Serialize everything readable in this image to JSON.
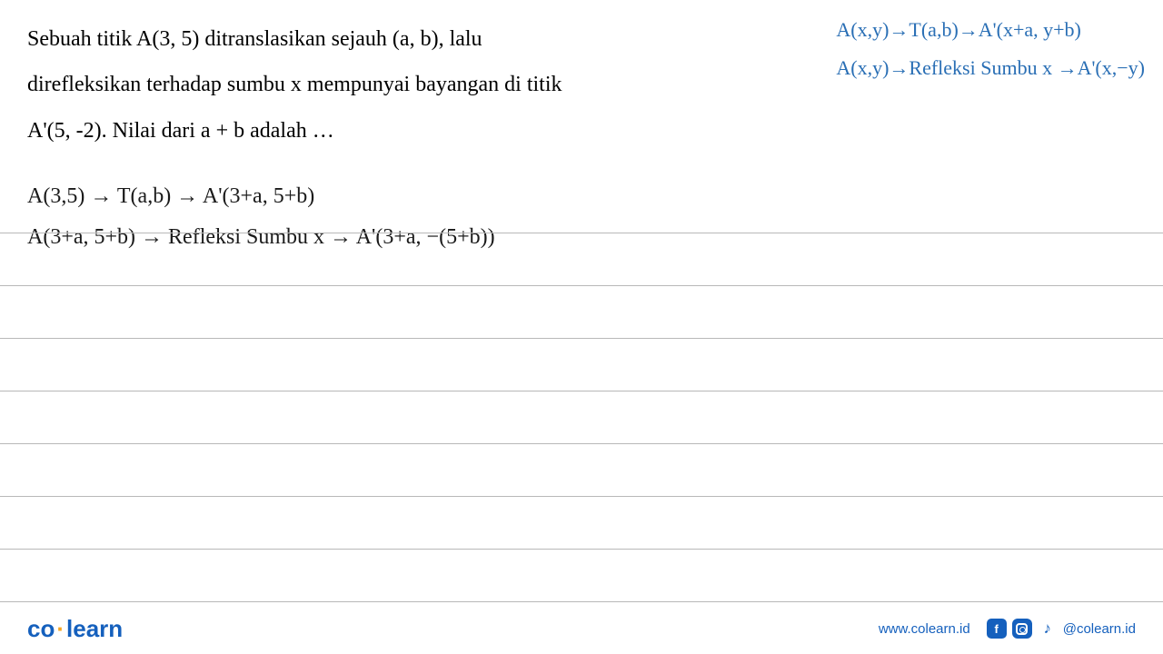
{
  "problem": {
    "line1": "Sebuah titik A(3, 5) ditranslasikan sejauh (a, b), lalu",
    "line2": "direfleksikan terhadap sumbu x mempunyai bayangan di titik",
    "line3": "A'(5, -2). Nilai dari a + b adalah …"
  },
  "annotations": {
    "line1": "A(x,y)→T(a,b)→A'(x+a, y+b)",
    "line2": "A(x,y)→Refleksi Sumbu x →A'(x,−y)"
  },
  "handwork": {
    "line1": "A(3,5) → T(a,b) → A'(3+a, 5+b)",
    "line2": "A(3+a, 5+b) → Refleksi Sumbu x → A'(3+a, −(5+b))"
  },
  "footer": {
    "logo_part1": "co",
    "logo_part2": "learn",
    "website": "www.colearn.id",
    "handle": "@colearn.id"
  },
  "colors": {
    "text": "#000000",
    "annotation": "#2a6fb5",
    "handwriting": "#1a1a1a",
    "brand": "#1560bd",
    "accent": "#f5a623",
    "rule": "#b8b8b8",
    "background": "#ffffff"
  }
}
